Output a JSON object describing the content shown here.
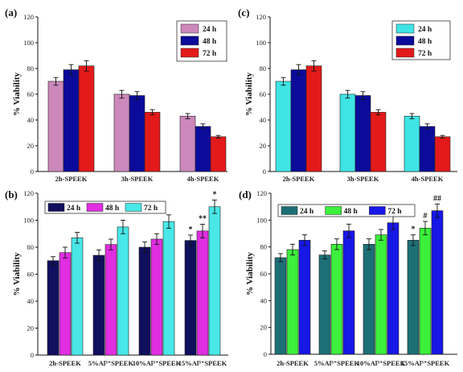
{
  "chart_data": [
    {
      "type": "bar",
      "panel_label": "(a)",
      "ylabel": "% Viability",
      "ylim": [
        0,
        120
      ],
      "yticks": [
        0,
        20,
        40,
        60,
        80,
        100,
        120
      ],
      "categories": [
        "2h-SPEEK",
        "3h-SPEEK",
        "4h-SPEEK"
      ],
      "legend_position": "top-right",
      "series": [
        {
          "name": "24 h",
          "color": "#cc88bb",
          "values": [
            70,
            60,
            43
          ],
          "errors": [
            3,
            3,
            2
          ]
        },
        {
          "name": "48 h",
          "color": "#0b0b99",
          "values": [
            79,
            59,
            35
          ],
          "errors": [
            4,
            3,
            2
          ]
        },
        {
          "name": "72 h",
          "color": "#e31a1a",
          "values": [
            82,
            46,
            27
          ],
          "errors": [
            4,
            2,
            1
          ]
        }
      ],
      "annotations": []
    },
    {
      "type": "bar",
      "panel_label": "(c)",
      "ylabel": "% Viability",
      "ylim": [
        0,
        120
      ],
      "yticks": [
        0,
        20,
        40,
        60,
        80,
        100,
        120
      ],
      "categories": [
        "2h-SPEEK",
        "3h-SPEEK",
        "4h-SPEEK"
      ],
      "legend_position": "top-right",
      "series": [
        {
          "name": "24 h",
          "color": "#3fe4e4",
          "values": [
            70,
            60,
            43
          ],
          "errors": [
            3,
            3,
            2
          ]
        },
        {
          "name": "48 h",
          "color": "#0b0b99",
          "values": [
            79,
            59,
            35
          ],
          "errors": [
            4,
            3,
            2
          ]
        },
        {
          "name": "72 h",
          "color": "#e31a1a",
          "values": [
            82,
            46,
            27
          ],
          "errors": [
            4,
            2,
            1
          ]
        }
      ],
      "annotations": []
    },
    {
      "type": "bar",
      "panel_label": "(b)",
      "ylabel": "% Viability",
      "ylim": [
        0,
        120
      ],
      "yticks": [
        0,
        20,
        40,
        60,
        80,
        100,
        120
      ],
      "categories": [
        "2h-SPEEK",
        "5%Al³⁺SPEEK",
        "10%Al³⁺SPEEK",
        "15%Al³⁺SPEEK"
      ],
      "legend_position": "top-left",
      "series": [
        {
          "name": "24 h",
          "color": "#10105e",
          "values": [
            70,
            74,
            80,
            85
          ],
          "errors": [
            3,
            4,
            4,
            4
          ]
        },
        {
          "name": "48 h",
          "color": "#e02ee0",
          "values": [
            76,
            82,
            86,
            92
          ],
          "errors": [
            4,
            4,
            4,
            5
          ]
        },
        {
          "name": "72 h",
          "color": "#49e7e7",
          "values": [
            87,
            95,
            99,
            110
          ],
          "errors": [
            4,
            5,
            5,
            5
          ]
        }
      ],
      "annotations": [
        {
          "text": "*",
          "category": 3,
          "series": 0
        },
        {
          "text": "**",
          "category": 3,
          "series": 1
        },
        {
          "text": "*",
          "category": 3,
          "series": 2
        }
      ]
    },
    {
      "type": "bar",
      "panel_label": "(d)",
      "ylabel": "% Viability",
      "ylim": [
        0,
        120
      ],
      "yticks": [
        0,
        20,
        40,
        60,
        80,
        100,
        120
      ],
      "categories": [
        "2h-SPEEK",
        "5%Al³⁺SPEEK",
        "10%Al³⁺SPEEK",
        "15%Al³⁺SPEEK"
      ],
      "legend_position": "top-left",
      "series": [
        {
          "name": "24 h",
          "color": "#1d6f76",
          "values": [
            72,
            74,
            82,
            85
          ],
          "errors": [
            3,
            3,
            4,
            4
          ]
        },
        {
          "name": "48 h",
          "color": "#3cf03c",
          "values": [
            78,
            82,
            89,
            94
          ],
          "errors": [
            4,
            4,
            4,
            5
          ]
        },
        {
          "name": "72 h",
          "color": "#1717e6",
          "values": [
            85,
            92,
            98,
            107
          ],
          "errors": [
            4,
            5,
            5,
            5
          ]
        }
      ],
      "annotations": [
        {
          "text": "*",
          "category": 3,
          "series": 0
        },
        {
          "text": "#",
          "category": 3,
          "series": 1
        },
        {
          "text": "##",
          "category": 3,
          "series": 2
        }
      ]
    }
  ]
}
